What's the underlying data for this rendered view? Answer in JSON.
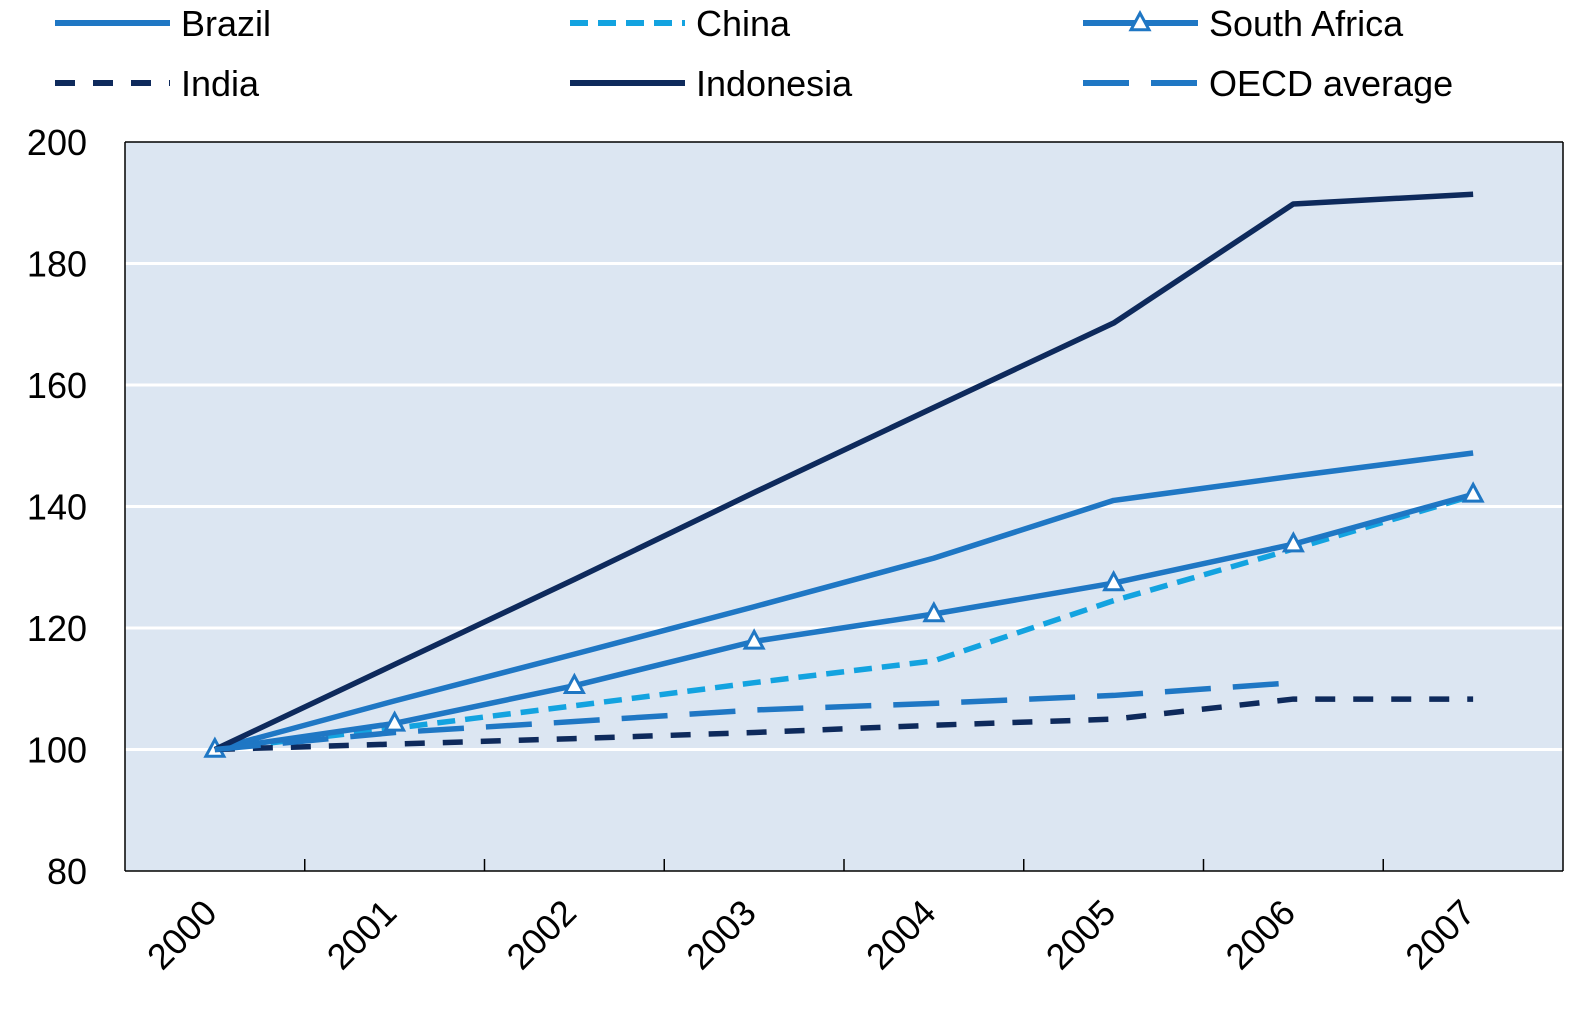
{
  "chart_data": {
    "type": "line",
    "title": "",
    "xlabel": "",
    "ylabel": "",
    "x": [
      "2000",
      "2001",
      "2002",
      "2003",
      "2004",
      "2005",
      "2006",
      "2007"
    ],
    "ylim": [
      80,
      200
    ],
    "yticks": [
      80,
      100,
      120,
      140,
      160,
      180,
      200
    ],
    "grid": true,
    "legend": "top",
    "background_color": "#dce6f2",
    "series": [
      {
        "name": "Brazil",
        "color": "#1f77c4",
        "style": "solid",
        "marker": "none",
        "values": [
          100,
          108,
          115.7,
          123.5,
          131.5,
          141,
          145,
          148.8
        ]
      },
      {
        "name": "China",
        "color": "#13a3e0",
        "style": "dotted",
        "marker": "none",
        "values": [
          100,
          103.5,
          107.2,
          111,
          114.6,
          124.5,
          133,
          141.8
        ]
      },
      {
        "name": "South Africa",
        "color": "#1f77c4",
        "style": "solid",
        "marker": "triangle",
        "values": [
          100,
          104.3,
          110.5,
          117.8,
          122.3,
          127.4,
          133.8,
          142
        ]
      },
      {
        "name": "India",
        "color": "#0e2a5c",
        "style": "dashed",
        "marker": "none",
        "values": [
          100,
          100.9,
          101.8,
          102.8,
          104,
          105,
          108.3,
          108.3
        ]
      },
      {
        "name": "Indonesia",
        "color": "#0e2a5c",
        "style": "solid",
        "marker": "none",
        "values": [
          100,
          114,
          128,
          142.3,
          156.3,
          170.2,
          189.8,
          191.4
        ]
      },
      {
        "name": "OECD average",
        "color": "#1f77c4",
        "style": "longdash",
        "marker": "none",
        "values": [
          100,
          102.8,
          104.6,
          106.5,
          107.6,
          108.9,
          111,
          null
        ]
      }
    ]
  }
}
